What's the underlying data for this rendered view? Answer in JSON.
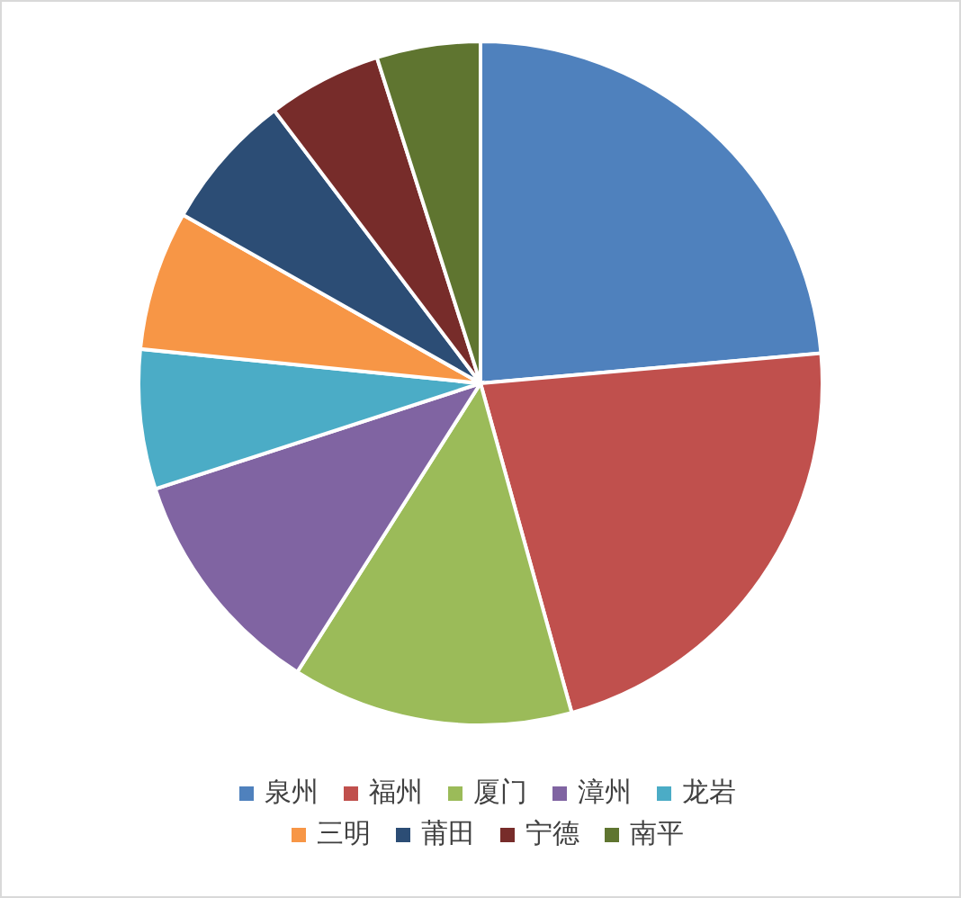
{
  "chart_data": {
    "type": "pie",
    "categories": [
      "泉州",
      "福州",
      "厦门",
      "漳州",
      "龙岩",
      "三明",
      "莆田",
      "宁德",
      "南平"
    ],
    "values": [
      23.6,
      22.1,
      13.3,
      11.0,
      6.6,
      6.6,
      6.5,
      5.4,
      4.9
    ],
    "colors": [
      "#4f81bd",
      "#c0504d",
      "#9bbb59",
      "#8064a2",
      "#4bacc6",
      "#f79646",
      "#2c4d75",
      "#772c2a",
      "#5f7530"
    ],
    "legend": "bottom"
  }
}
